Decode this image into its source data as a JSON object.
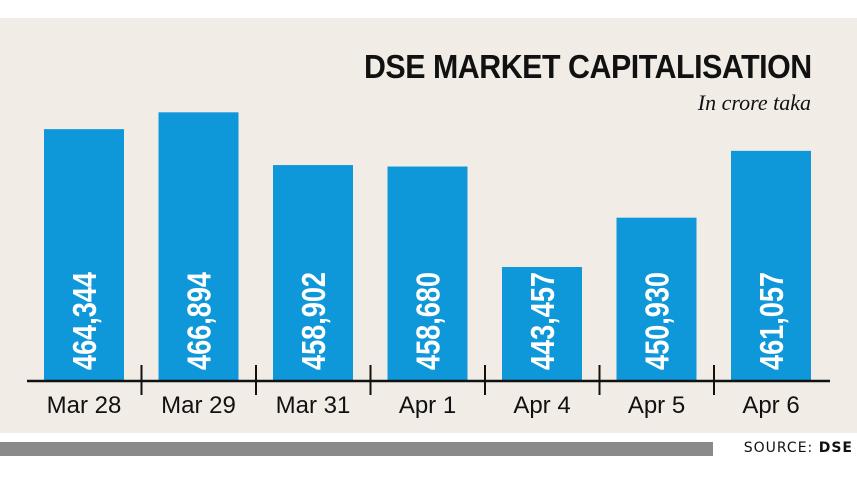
{
  "chart_data": {
    "type": "bar",
    "title": "DSE MARKET CAPITALISATION",
    "subtitle": "In crore taka",
    "categories": [
      "Mar 28",
      "Mar 29",
      "Mar 31",
      "Apr 1",
      "Apr 4",
      "Apr 5",
      "Apr 6"
    ],
    "values": [
      464344,
      466894,
      458902,
      458680,
      443457,
      450930,
      461057
    ],
    "value_labels": [
      "464,344",
      "466,894",
      "458,902",
      "458,680",
      "443,457",
      "450,930",
      "461,057"
    ],
    "bar_color": "#0e98d9"
  },
  "source": {
    "label": "SOURCE:",
    "name": "DSE"
  }
}
